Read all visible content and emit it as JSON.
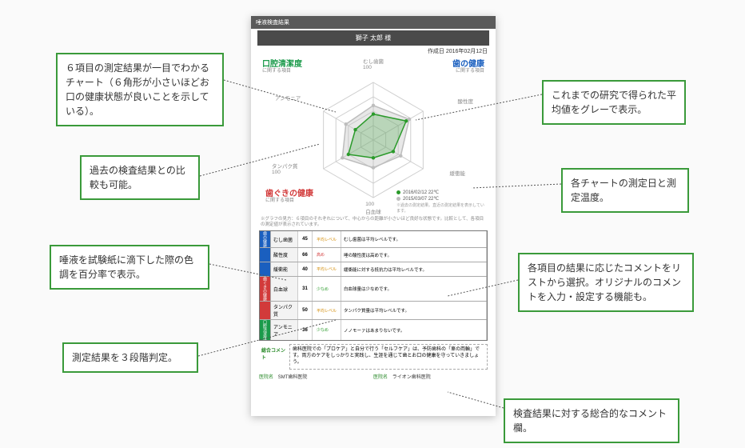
{
  "document": {
    "header_label": "唾液検査結果",
    "patient_name": "獅子 太郎 様",
    "issue_date": "作成日 2016年02月12日",
    "radar": {
      "type": "radar",
      "titles": {
        "top_left": {
          "text": "口腔清潔度",
          "sub": "に関する項目",
          "color": "#1a9a4a"
        },
        "top_right": {
          "text": "歯の健康",
          "sub": "に関する項目",
          "color": "#1a5fbf"
        },
        "bottom": {
          "text": "歯ぐきの健康",
          "sub": "に関する項目",
          "color": "#d23a3a"
        }
      },
      "axes": [
        "むし歯菌",
        "酸性度",
        "緩衝能",
        "白血球",
        "タンパク質",
        "アンモニア"
      ],
      "axis_max": 100,
      "series": [
        {
          "label": "2016/02/12  22℃",
          "color": "#2a9a2a",
          "fill": "#2a9a2a",
          "fill_opacity": 0.25,
          "values": [
            45,
            66,
            40,
            31,
            50,
            36
          ]
        },
        {
          "label": "2015/03/07  22℃",
          "color": "#bdbdbd",
          "fill": "#bdbdbd",
          "fill_opacity": 0.35,
          "values": [
            60,
            72,
            55,
            48,
            62,
            55
          ]
        }
      ],
      "grid_color": "#cfcfcf",
      "background": "#ffffff",
      "legend_note": "※過去の測定結果。直近の測定結果を表示しています。"
    },
    "note_line": "※グラフの見方：６項目のそれぞれについて、中心からの距離が小さいほど良好な状態です。比較として、各項目の測定値が表示されています。",
    "table": {
      "categories": [
        {
          "label": "歯の健康",
          "bg": "#1a5fbf",
          "rows": [
            {
              "name": "むし歯菌",
              "value": 45,
              "level_text": "平均レベル",
              "level_color": "#d28a00",
              "comment": "むし歯菌は平均レベルです。"
            },
            {
              "name": "酸性度",
              "value": 66,
              "level_text": "高め",
              "level_color": "#d23a3a",
              "comment": "唾の酸性度は高めです。"
            },
            {
              "name": "緩衝能",
              "value": 40,
              "level_text": "平均レベル",
              "level_color": "#d28a00",
              "comment": "緩衝能に対する抵抗力は平均レベルです。"
            }
          ]
        },
        {
          "label": "歯ぐきの健康",
          "bg": "#d23a3a",
          "rows": [
            {
              "name": "白血球",
              "value": 31,
              "level_text": "少なめ",
              "level_color": "#2a9a2a",
              "comment": "白血球量は少なめです。"
            },
            {
              "name": "タンパク質",
              "value": 50,
              "level_text": "平均レベル",
              "level_color": "#d28a00",
              "comment": "タンパク質量は平均レベルです。"
            }
          ]
        },
        {
          "label": "口腔清潔度",
          "bg": "#1a9a4a",
          "rows": [
            {
              "name": "アンモニア",
              "value": 36,
              "level_text": "少なめ",
              "level_color": "#2a9a2a",
              "comment": "ノノモーァはあまりないです。"
            }
          ]
        }
      ]
    },
    "overall_label": "総合コメント",
    "overall_comment": "歯科医院での「プロケア」と自分で行う「セルフケア」は、予防歯科の「車の両輪」です。両方のケアをしっかりと実践し、生涯を通じて歯とお口の健康を守っていきましょう。",
    "clinic": {
      "left_label": "医院名",
      "left_value": "SMT歯科医院",
      "right_label": "医院名",
      "right_value": "ライオン歯科医院"
    }
  },
  "callouts": {
    "c1": "６項目の測定結果が一目でわかるチャート（６角形が小さいほどお口の健康状態が良いことを示している）。",
    "c2": "過去の検査結果との比較も可能。",
    "c3": "唾液を試験紙に滴下した際の色調を百分率で表示。",
    "c4": "測定結果を３段階判定。",
    "c5": "これまでの研究で得られた平均値をグレーで表示。",
    "c6": "各チャートの測定日と測定温度。",
    "c7": "各項目の結果に応じたコメントをリストから選択。オリジナルのコメントを入力・設定する機能も。",
    "c8": "検査結果に対する総合的なコメント欄。"
  }
}
